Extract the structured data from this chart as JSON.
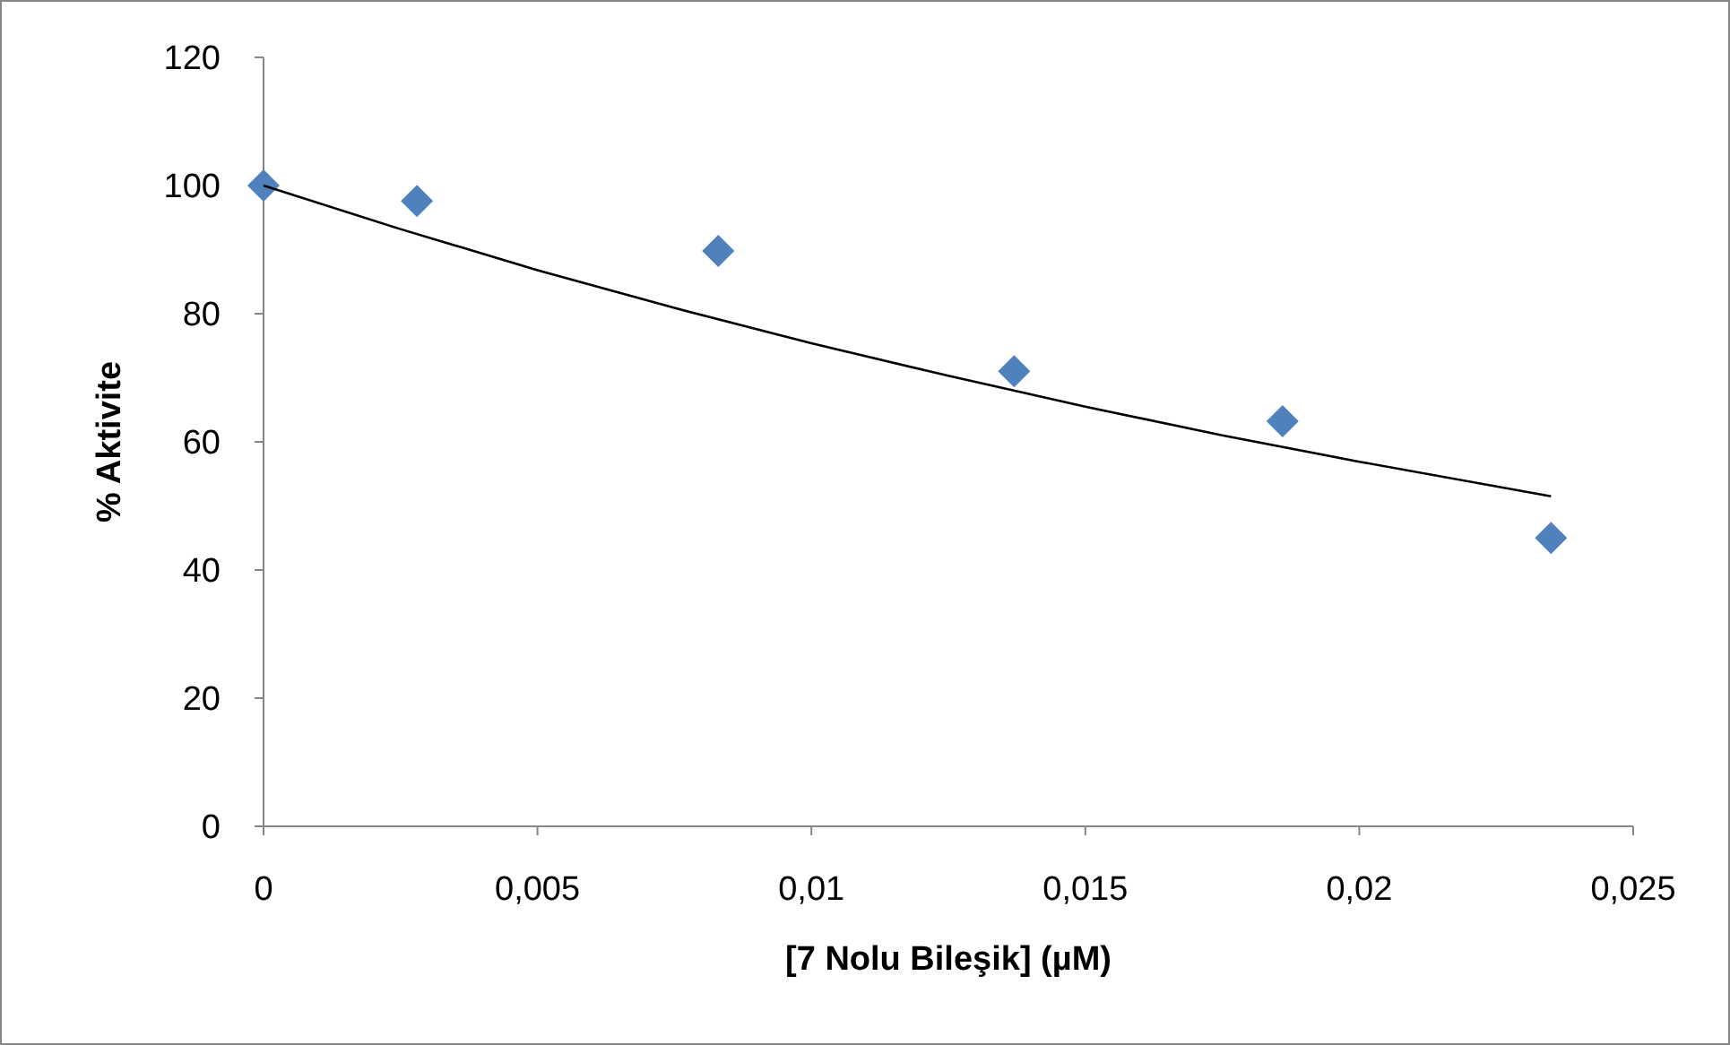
{
  "chart_data": {
    "type": "scatter",
    "xlabel": "[7 Nolu Bileşik] (µM)",
    "ylabel": "% Aktivite",
    "xlim": [
      0,
      0.025
    ],
    "xticks": [
      {
        "value": 0,
        "label": "0"
      },
      {
        "value": 0.005,
        "label": "0,005"
      },
      {
        "value": 0.01,
        "label": "0,01"
      },
      {
        "value": 0.015,
        "label": "0,015"
      },
      {
        "value": 0.02,
        "label": "0,02"
      },
      {
        "value": 0.025,
        "label": "0,025"
      }
    ],
    "ylim": [
      0,
      120
    ],
    "yticks": [
      0,
      20,
      40,
      60,
      80,
      100,
      120
    ],
    "grid": false,
    "series": [
      {
        "marker": "diamond",
        "color": "#4f81bd",
        "x": [
          0,
          0.0028,
          0.0083,
          0.0137,
          0.0186,
          0.0235
        ],
        "values": [
          100,
          97.6,
          89.8,
          71,
          63.2,
          45
        ]
      },
      {
        "type": "line",
        "marker": "none",
        "color": "#000000",
        "x": [
          0,
          0.0025,
          0.005,
          0.0075,
          0.01,
          0.0125,
          0.015,
          0.0175,
          0.02,
          0.0235
        ],
        "values": [
          100,
          93.2,
          86.8,
          80.9,
          75.4,
          70.3,
          65.5,
          61,
          56.9,
          51.5
        ]
      }
    ]
  }
}
